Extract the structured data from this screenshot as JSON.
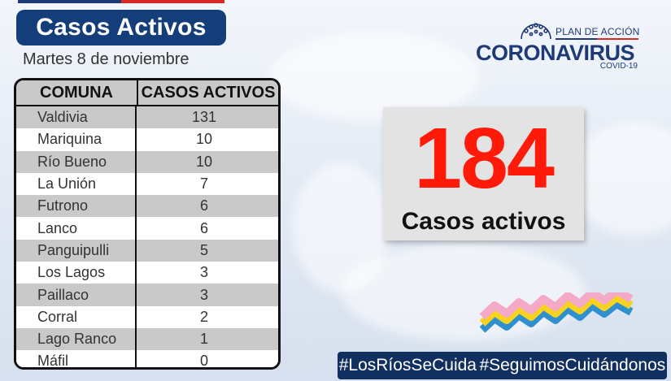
{
  "header": {
    "title": "Casos Activos",
    "date": "Martes 8 de noviembre"
  },
  "logo": {
    "plan_text": "PLAN DE ACCIÓN",
    "main_text": "CORONAVIRUS",
    "sub_text": "COVID-19",
    "icon": "virus-icon"
  },
  "table": {
    "headers": [
      "COMUNA",
      "CASOS ACTIVOS"
    ],
    "rows": [
      {
        "comuna": "Valdivia",
        "casos": "131"
      },
      {
        "comuna": "Mariquina",
        "casos": "10"
      },
      {
        "comuna": "Río Bueno",
        "casos": "10"
      },
      {
        "comuna": "La Unión",
        "casos": "7"
      },
      {
        "comuna": "Futrono",
        "casos": "6"
      },
      {
        "comuna": "Lanco",
        "casos": "6"
      },
      {
        "comuna": "Panguipulli",
        "casos": "5"
      },
      {
        "comuna": "Los Lagos",
        "casos": "3"
      },
      {
        "comuna": "Paillaco",
        "casos": "3"
      },
      {
        "comuna": "Corral",
        "casos": "2"
      },
      {
        "comuna": "Lago Ranco",
        "casos": "1"
      },
      {
        "comuna": "Máfil",
        "casos": "0"
      }
    ]
  },
  "summary": {
    "total": "184",
    "label": "Casos activos"
  },
  "hashtags": [
    "#LosRíosSeCuida",
    "#SeguimosCuidándonos"
  ],
  "colors": {
    "navy": "#143e7a",
    "red": "#ff1a0a",
    "table_stripe": "#c9c9c9",
    "wave_pink": "#f4a9c6",
    "wave_yellow": "#f7d21e",
    "wave_blue": "#2f8fcf"
  }
}
